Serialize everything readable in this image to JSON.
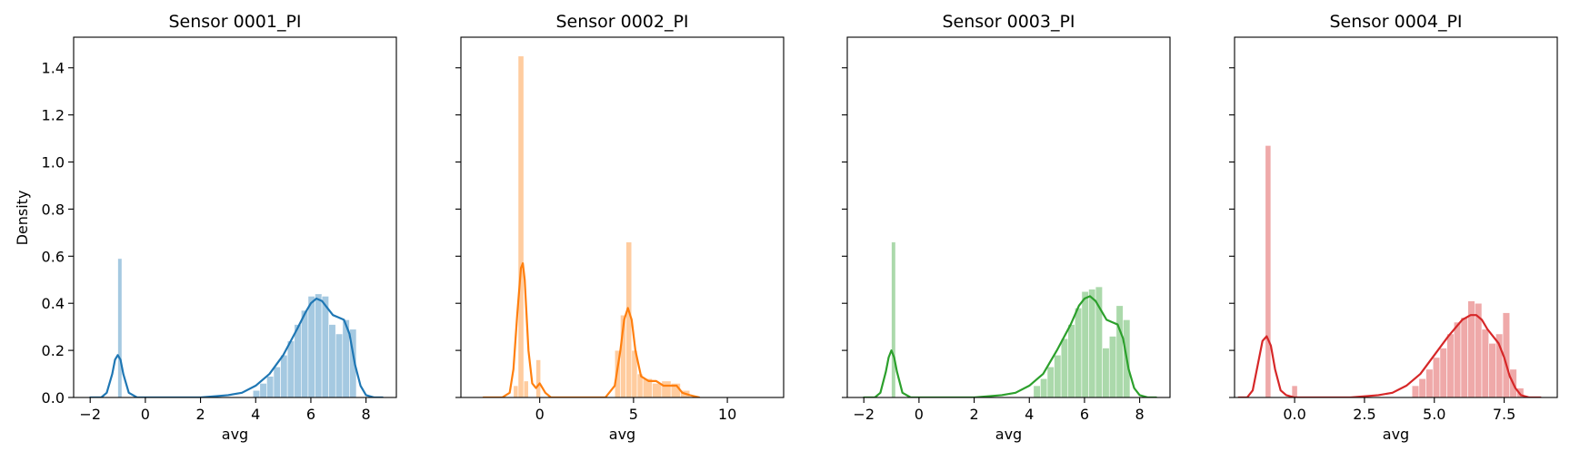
{
  "chart_data": {
    "type": "bar",
    "shared_ylabel": "Density",
    "ylim": [
      0,
      1.53
    ],
    "yticks": [
      0.0,
      0.2,
      0.4,
      0.6,
      0.8,
      1.0,
      1.2,
      1.4
    ],
    "yticks_labels": [
      "0.0",
      "0.2",
      "0.4",
      "0.6",
      "0.8",
      "1.0",
      "1.2",
      "1.4"
    ],
    "grid": false,
    "legend": "none",
    "panels": [
      {
        "title": "Sensor 0001_PI",
        "xlabel": "avg",
        "xlim": [
          -2.6,
          9.1
        ],
        "xticks": [
          -2,
          0,
          2,
          4,
          6,
          8
        ],
        "xticks_labels": [
          "−2",
          "0",
          "2",
          "4",
          "6",
          "8"
        ],
        "hist_color": "#1f77b4",
        "hist_opacity": 0.4,
        "line_color": "#1f77b4",
        "bins": [
          {
            "x0": -1.0,
            "x1": -0.85,
            "h": 0.59
          },
          {
            "x0": 3.9,
            "x1": 4.15,
            "h": 0.03
          },
          {
            "x0": 4.15,
            "x1": 4.4,
            "h": 0.06
          },
          {
            "x0": 4.4,
            "x1": 4.65,
            "h": 0.09
          },
          {
            "x0": 4.65,
            "x1": 4.9,
            "h": 0.13
          },
          {
            "x0": 4.9,
            "x1": 5.15,
            "h": 0.18
          },
          {
            "x0": 5.15,
            "x1": 5.4,
            "h": 0.24
          },
          {
            "x0": 5.4,
            "x1": 5.65,
            "h": 0.31
          },
          {
            "x0": 5.65,
            "x1": 5.9,
            "h": 0.37
          },
          {
            "x0": 5.9,
            "x1": 6.15,
            "h": 0.43
          },
          {
            "x0": 6.15,
            "x1": 6.4,
            "h": 0.44
          },
          {
            "x0": 6.4,
            "x1": 6.65,
            "h": 0.43
          },
          {
            "x0": 6.65,
            "x1": 6.9,
            "h": 0.31
          },
          {
            "x0": 6.9,
            "x1": 7.15,
            "h": 0.27
          },
          {
            "x0": 7.15,
            "x1": 7.4,
            "h": 0.33
          },
          {
            "x0": 7.4,
            "x1": 7.65,
            "h": 0.29
          }
        ],
        "kde": {
          "x": [
            -2.0,
            -1.6,
            -1.4,
            -1.2,
            -1.1,
            -1.0,
            -0.9,
            -0.8,
            -0.6,
            -0.3,
            0,
            1.0,
            2.0,
            3.0,
            3.5,
            4.0,
            4.5,
            5.0,
            5.5,
            5.8,
            6.0,
            6.2,
            6.4,
            6.6,
            6.8,
            7.0,
            7.2,
            7.4,
            7.6,
            7.8,
            8.0,
            8.3,
            8.6
          ],
          "y": [
            0.0,
            0.0,
            0.02,
            0.1,
            0.16,
            0.18,
            0.16,
            0.1,
            0.02,
            0.0,
            0.0,
            0.0,
            0.0,
            0.01,
            0.02,
            0.05,
            0.1,
            0.18,
            0.29,
            0.36,
            0.4,
            0.42,
            0.41,
            0.38,
            0.35,
            0.34,
            0.33,
            0.27,
            0.14,
            0.05,
            0.01,
            0.0,
            0.0
          ]
        }
      },
      {
        "title": "Sensor 0002_PI",
        "xlabel": "avg",
        "xlim": [
          -4.2,
          13.0
        ],
        "xticks": [
          0,
          5,
          10
        ],
        "xticks_labels": [
          "0",
          "5",
          "10"
        ],
        "hist_color": "#ff7f0e",
        "hist_opacity": 0.4,
        "line_color": "#ff7f0e",
        "bins": [
          {
            "x0": -1.4,
            "x1": -1.15,
            "h": 0.05
          },
          {
            "x0": -1.15,
            "x1": -0.85,
            "h": 1.45
          },
          {
            "x0": -0.85,
            "x1": -0.6,
            "h": 0.07
          },
          {
            "x0": -0.2,
            "x1": 0.05,
            "h": 0.16
          },
          {
            "x0": 4.0,
            "x1": 4.3,
            "h": 0.2
          },
          {
            "x0": 4.3,
            "x1": 4.6,
            "h": 0.35
          },
          {
            "x0": 4.6,
            "x1": 4.9,
            "h": 0.66
          },
          {
            "x0": 4.9,
            "x1": 5.2,
            "h": 0.2
          },
          {
            "x0": 5.2,
            "x1": 5.5,
            "h": 0.1
          },
          {
            "x0": 5.5,
            "x1": 6.0,
            "h": 0.08
          },
          {
            "x0": 6.0,
            "x1": 6.5,
            "h": 0.06
          },
          {
            "x0": 6.5,
            "x1": 7.0,
            "h": 0.07
          },
          {
            "x0": 7.0,
            "x1": 7.5,
            "h": 0.06
          },
          {
            "x0": 7.5,
            "x1": 8.0,
            "h": 0.03
          }
        ],
        "kde": {
          "x": [
            -3.0,
            -2.0,
            -1.6,
            -1.4,
            -1.2,
            -1.0,
            -0.9,
            -0.8,
            -0.6,
            -0.4,
            -0.2,
            0,
            0.3,
            0.6,
            1.0,
            2.0,
            3.0,
            3.5,
            4.0,
            4.3,
            4.5,
            4.7,
            4.9,
            5.1,
            5.4,
            5.8,
            6.2,
            6.6,
            7.0,
            7.3,
            7.6,
            8.0,
            8.5
          ],
          "y": [
            0.0,
            0.0,
            0.02,
            0.12,
            0.35,
            0.55,
            0.57,
            0.5,
            0.2,
            0.06,
            0.04,
            0.06,
            0.02,
            0.0,
            0.0,
            0.0,
            0.0,
            0.0,
            0.05,
            0.2,
            0.33,
            0.38,
            0.33,
            0.2,
            0.09,
            0.07,
            0.07,
            0.05,
            0.05,
            0.05,
            0.02,
            0.01,
            0.0
          ]
        }
      },
      {
        "title": "Sensor 0003_PI",
        "xlabel": "avg",
        "xlim": [
          -2.6,
          9.1
        ],
        "xticks": [
          -2,
          0,
          2,
          4,
          6,
          8
        ],
        "xticks_labels": [
          "−2",
          "0",
          "2",
          "4",
          "6",
          "8"
        ],
        "hist_color": "#2ca02c",
        "hist_opacity": 0.4,
        "line_color": "#2ca02c",
        "bins": [
          {
            "x0": -1.0,
            "x1": -0.85,
            "h": 0.66
          },
          {
            "x0": 4.15,
            "x1": 4.4,
            "h": 0.05
          },
          {
            "x0": 4.4,
            "x1": 4.65,
            "h": 0.08
          },
          {
            "x0": 4.65,
            "x1": 4.9,
            "h": 0.13
          },
          {
            "x0": 4.9,
            "x1": 5.15,
            "h": 0.18
          },
          {
            "x0": 5.15,
            "x1": 5.4,
            "h": 0.25
          },
          {
            "x0": 5.4,
            "x1": 5.65,
            "h": 0.31
          },
          {
            "x0": 5.65,
            "x1": 5.9,
            "h": 0.38
          },
          {
            "x0": 5.9,
            "x1": 6.15,
            "h": 0.45
          },
          {
            "x0": 6.15,
            "x1": 6.4,
            "h": 0.46
          },
          {
            "x0": 6.4,
            "x1": 6.65,
            "h": 0.47
          },
          {
            "x0": 6.65,
            "x1": 6.9,
            "h": 0.21
          },
          {
            "x0": 6.9,
            "x1": 7.15,
            "h": 0.26
          },
          {
            "x0": 7.15,
            "x1": 7.4,
            "h": 0.39
          },
          {
            "x0": 7.4,
            "x1": 7.65,
            "h": 0.33
          }
        ],
        "kde": {
          "x": [
            -2.0,
            -1.6,
            -1.4,
            -1.2,
            -1.1,
            -1.0,
            -0.9,
            -0.8,
            -0.6,
            -0.3,
            0,
            1.0,
            2.0,
            3.0,
            3.5,
            4.0,
            4.5,
            5.0,
            5.5,
            5.8,
            6.0,
            6.2,
            6.4,
            6.6,
            6.8,
            7.0,
            7.2,
            7.4,
            7.6,
            7.8,
            8.0,
            8.3,
            8.6
          ],
          "y": [
            0.0,
            0.0,
            0.02,
            0.11,
            0.17,
            0.2,
            0.17,
            0.11,
            0.02,
            0.0,
            0.0,
            0.0,
            0.0,
            0.01,
            0.02,
            0.05,
            0.1,
            0.2,
            0.31,
            0.39,
            0.42,
            0.43,
            0.41,
            0.37,
            0.33,
            0.32,
            0.31,
            0.25,
            0.12,
            0.04,
            0.01,
            0.0,
            0.0
          ]
        }
      },
      {
        "title": "Sensor 0004_PI",
        "xlabel": "avg",
        "xlim": [
          -2.15,
          9.4
        ],
        "xticks": [
          0.0,
          2.5,
          5.0,
          7.5
        ],
        "xticks_labels": [
          "0.0",
          "2.5",
          "5.0",
          "7.5"
        ],
        "hist_color": "#d62728",
        "hist_opacity": 0.4,
        "line_color": "#d62728",
        "bins": [
          {
            "x0": -1.05,
            "x1": -0.85,
            "h": 1.07
          },
          {
            "x0": -0.1,
            "x1": 0.1,
            "h": 0.05
          },
          {
            "x0": 4.2,
            "x1": 4.45,
            "h": 0.05
          },
          {
            "x0": 4.45,
            "x1": 4.7,
            "h": 0.08
          },
          {
            "x0": 4.7,
            "x1": 4.95,
            "h": 0.12
          },
          {
            "x0": 4.95,
            "x1": 5.2,
            "h": 0.17
          },
          {
            "x0": 5.2,
            "x1": 5.45,
            "h": 0.21
          },
          {
            "x0": 5.45,
            "x1": 5.7,
            "h": 0.27
          },
          {
            "x0": 5.7,
            "x1": 5.95,
            "h": 0.32
          },
          {
            "x0": 5.95,
            "x1": 6.2,
            "h": 0.34
          },
          {
            "x0": 6.2,
            "x1": 6.45,
            "h": 0.41
          },
          {
            "x0": 6.45,
            "x1": 6.7,
            "h": 0.4
          },
          {
            "x0": 6.7,
            "x1": 6.95,
            "h": 0.29
          },
          {
            "x0": 6.95,
            "x1": 7.2,
            "h": 0.23
          },
          {
            "x0": 7.2,
            "x1": 7.45,
            "h": 0.27
          },
          {
            "x0": 7.45,
            "x1": 7.7,
            "h": 0.36
          },
          {
            "x0": 7.7,
            "x1": 7.95,
            "h": 0.12
          },
          {
            "x0": 7.95,
            "x1": 8.2,
            "h": 0.04
          }
        ],
        "kde": {
          "x": [
            -2.0,
            -1.7,
            -1.5,
            -1.3,
            -1.15,
            -1.0,
            -0.85,
            -0.7,
            -0.5,
            -0.3,
            0,
            1.0,
            2.0,
            3.0,
            3.5,
            4.0,
            4.5,
            5.0,
            5.5,
            6.0,
            6.3,
            6.5,
            6.7,
            6.9,
            7.1,
            7.3,
            7.5,
            7.7,
            7.9,
            8.1,
            8.4,
            8.8
          ],
          "y": [
            0.0,
            0.0,
            0.03,
            0.15,
            0.24,
            0.26,
            0.22,
            0.12,
            0.03,
            0.01,
            0.0,
            0.0,
            0.0,
            0.01,
            0.02,
            0.05,
            0.1,
            0.18,
            0.26,
            0.33,
            0.35,
            0.35,
            0.33,
            0.29,
            0.26,
            0.23,
            0.17,
            0.09,
            0.04,
            0.01,
            0.0,
            0.0
          ]
        }
      }
    ]
  }
}
